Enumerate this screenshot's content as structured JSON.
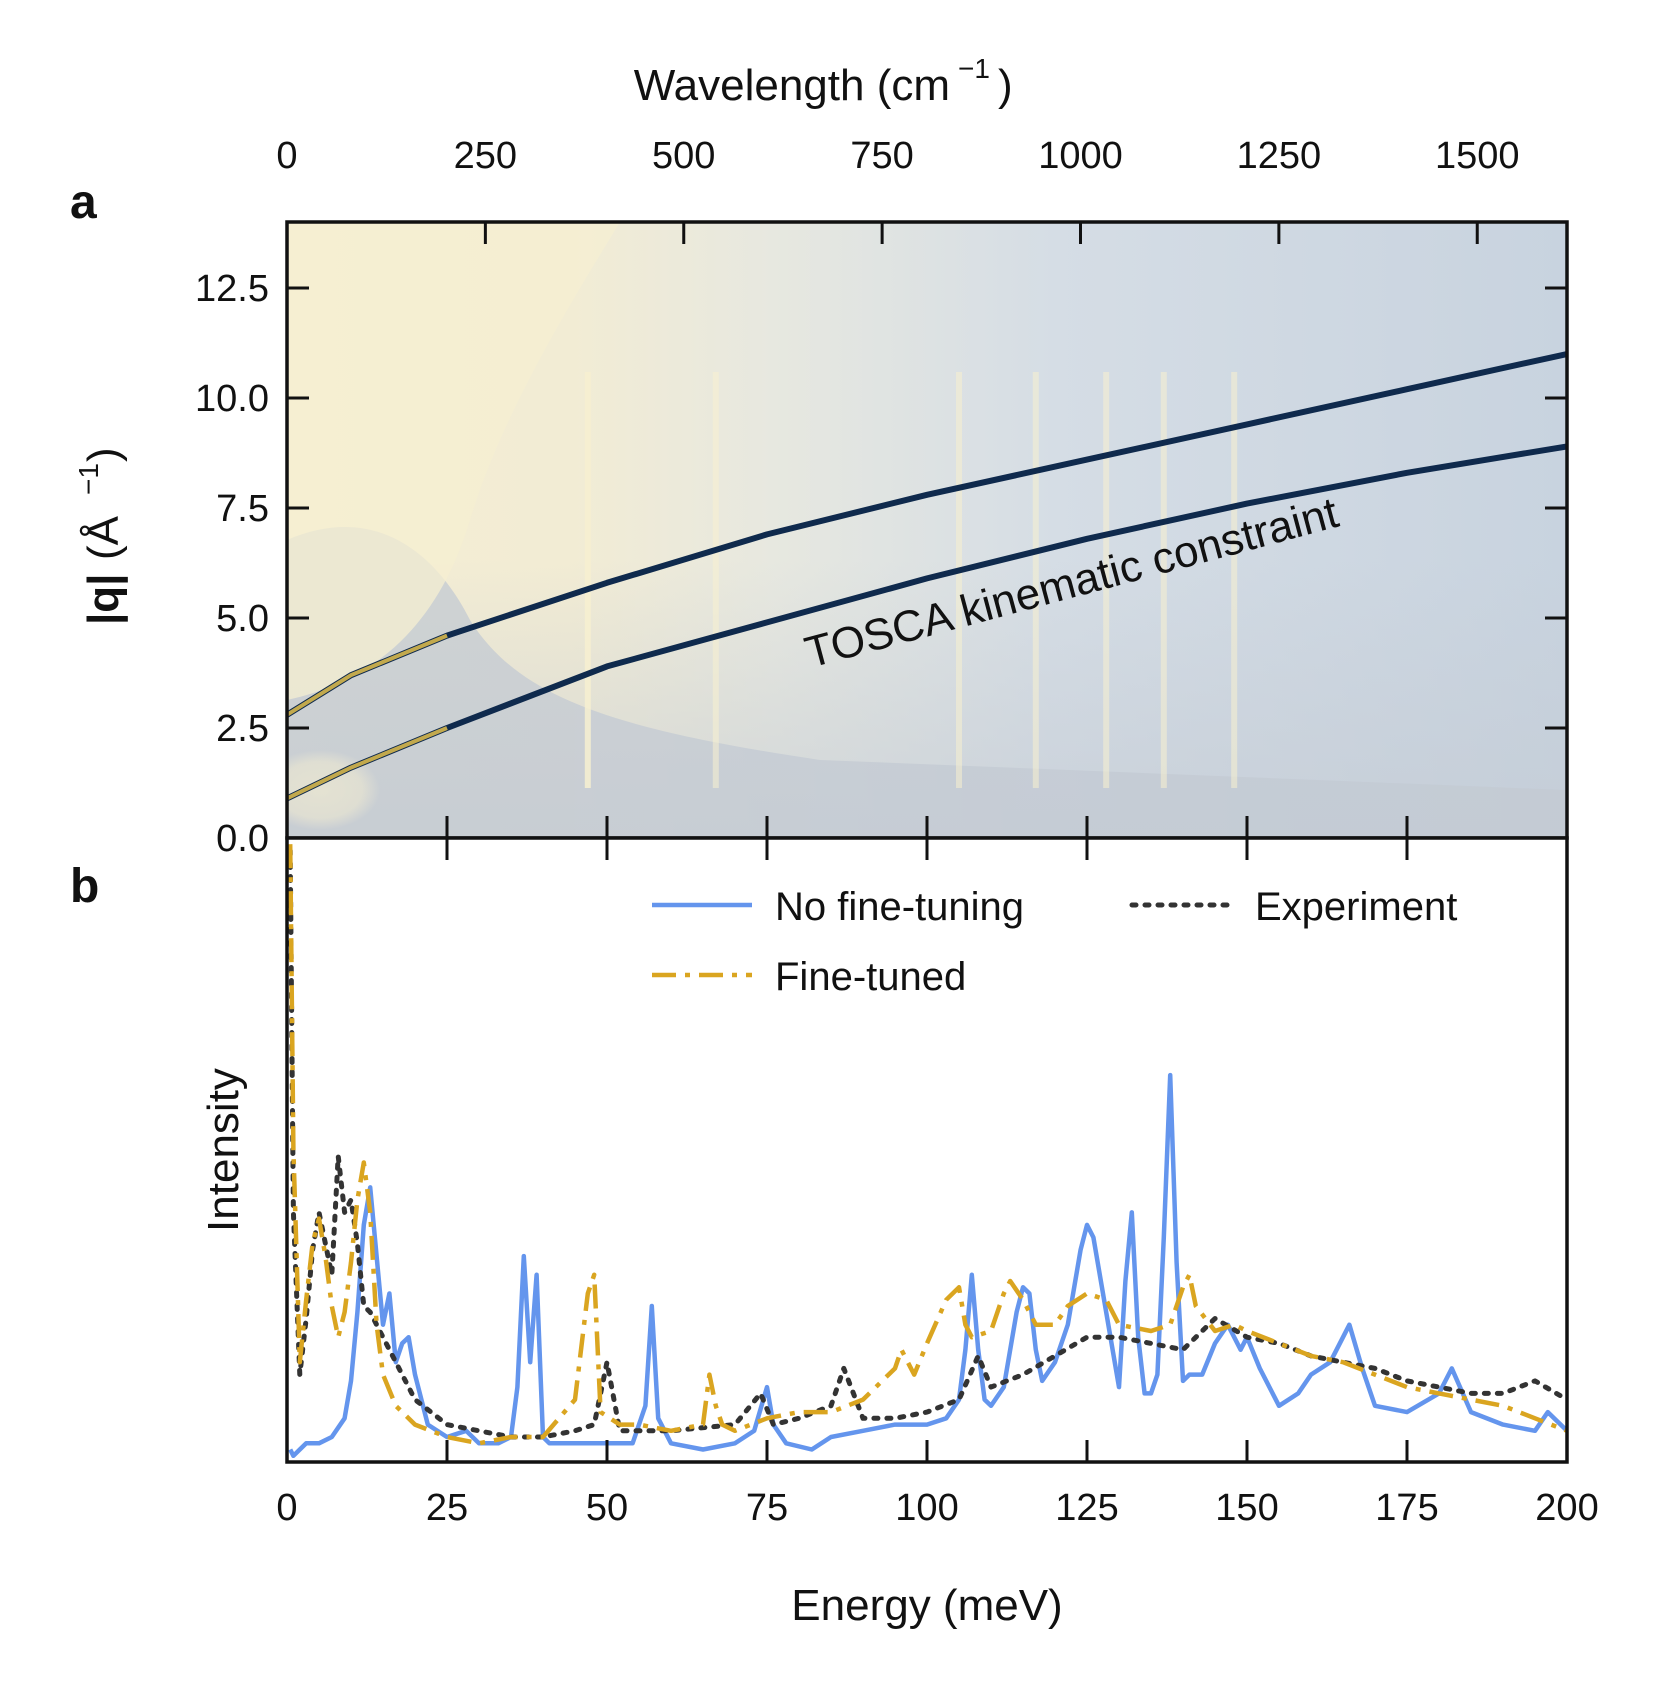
{
  "figure": {
    "panel_a_letter": "a",
    "panel_b_letter": "b"
  },
  "chart_data": [
    {
      "type": "heatmap",
      "panel": "a",
      "top_axis_label": "Wavelength (cm",
      "top_axis_label_exp": "−1",
      "top_axis_label_close": ")",
      "top_ticks": [
        "0",
        "250",
        "500",
        "750",
        "1000",
        "1250",
        "1500"
      ],
      "top_tick_values": [
        0,
        250,
        500,
        750,
        1000,
        1250,
        1500
      ],
      "ylabel_q": "|q|",
      "ylabel_unit": "(Å",
      "ylabel_exp": "−1",
      "ylabel_close": ")",
      "ylim": [
        0,
        14
      ],
      "xlim_meV": [
        0,
        200
      ],
      "y_ticks": [
        "0.0",
        "2.5",
        "5.0",
        "7.5",
        "10.0",
        "12.5"
      ],
      "y_tick_values": [
        0.0,
        2.5,
        5.0,
        7.5,
        10.0,
        12.5
      ],
      "annotation": "TOSCA kinematic constraint",
      "colors": {
        "low_q_high_intensity": "#f5eed3",
        "background": "#c3ccd7",
        "curve": "#0f2a4d",
        "curve_highlight": "#d6b74e"
      },
      "constraint_curves": [
        {
          "name": "upper",
          "energy_meV": [
            0,
            10,
            25,
            50,
            75,
            100,
            125,
            150,
            175,
            200
          ],
          "q": [
            2.8,
            3.7,
            4.6,
            5.8,
            6.9,
            7.8,
            8.6,
            9.4,
            10.2,
            11.0
          ]
        },
        {
          "name": "lower",
          "energy_meV": [
            0,
            10,
            25,
            50,
            75,
            100,
            125,
            150,
            175,
            200
          ],
          "q": [
            0.9,
            1.6,
            2.5,
            3.9,
            4.9,
            5.9,
            6.8,
            7.6,
            8.3,
            8.9
          ]
        }
      ],
      "bright_streaks_meV": [
        47,
        67,
        105,
        117,
        128,
        137,
        148
      ]
    },
    {
      "type": "line",
      "panel": "b",
      "xlabel": "Energy (meV)",
      "ylabel": "Intensity",
      "xlim": [
        0,
        200
      ],
      "ylim": [
        0,
        100
      ],
      "x_ticks": [
        "0",
        "25",
        "50",
        "75",
        "100",
        "125",
        "150",
        "175",
        "200"
      ],
      "x_tick_values": [
        0,
        25,
        50,
        75,
        100,
        125,
        150,
        175,
        200
      ],
      "legend": [
        "No fine-tuning",
        "Experiment",
        "Fine-tuned"
      ],
      "series": [
        {
          "name": "No fine-tuning",
          "color": "#6495ed",
          "style": "solid",
          "x": [
            0.5,
            1,
            2,
            3,
            5,
            7,
            9,
            10,
            11,
            12,
            13,
            14,
            15,
            16,
            17,
            18,
            19,
            20,
            22,
            25,
            28,
            30,
            33,
            35,
            36,
            37,
            38,
            39,
            40,
            41,
            42,
            45,
            50,
            54,
            56,
            57,
            58,
            60,
            65,
            70,
            73,
            75,
            76,
            78,
            82,
            85,
            90,
            95,
            100,
            103,
            105,
            106,
            107,
            108,
            109,
            110,
            112,
            114,
            115,
            116,
            117,
            118,
            120,
            122,
            124,
            125,
            126,
            128,
            130,
            131,
            132,
            133,
            134,
            135,
            136,
            137,
            138,
            139,
            140,
            141,
            143,
            145,
            147,
            149,
            150,
            152,
            155,
            158,
            160,
            163,
            165,
            166,
            168,
            170,
            175,
            180,
            182,
            185,
            190,
            195,
            197,
            200
          ],
          "y": [
            2,
            1,
            2,
            3,
            3,
            4,
            7,
            13,
            24,
            38,
            44,
            33,
            22,
            27,
            16,
            19,
            20,
            14,
            6,
            4,
            5,
            3,
            3,
            4,
            12,
            33,
            16,
            30,
            4,
            3,
            3,
            3,
            3,
            3,
            9,
            25,
            7,
            3,
            2,
            3,
            5,
            12,
            6,
            3,
            2,
            4,
            5,
            6,
            6,
            7,
            10,
            18,
            30,
            18,
            10,
            9,
            12,
            24,
            28,
            27,
            18,
            13,
            16,
            22,
            34,
            38,
            36,
            24,
            12,
            29,
            40,
            20,
            11,
            11,
            14,
            36,
            62,
            32,
            13,
            14,
            14,
            19,
            22,
            18,
            20,
            15,
            9,
            11,
            14,
            16,
            20,
            22,
            15,
            9,
            8,
            11,
            15,
            8,
            6,
            5,
            8,
            5
          ]
        },
        {
          "name": "Experiment",
          "color": "#333333",
          "style": "dotted",
          "x": [
            0.5,
            1,
            2,
            3,
            4,
            5,
            6,
            7,
            8,
            9,
            10,
            11,
            12,
            13,
            15,
            18,
            20,
            25,
            30,
            35,
            40,
            45,
            48,
            50,
            52,
            55,
            60,
            70,
            74,
            76,
            80,
            85,
            87,
            90,
            95,
            100,
            105,
            108,
            110,
            115,
            120,
            125,
            130,
            135,
            140,
            145,
            150,
            155,
            160,
            165,
            170,
            175,
            180,
            185,
            190,
            195,
            200
          ],
          "y": [
            98,
            40,
            14,
            23,
            34,
            40,
            35,
            30,
            49,
            40,
            42,
            35,
            25,
            24,
            20,
            14,
            10,
            6,
            5,
            4,
            4,
            5,
            6,
            16,
            5,
            5,
            5,
            6,
            11,
            6,
            7,
            9,
            15,
            7,
            7,
            8,
            10,
            17,
            12,
            14,
            17,
            20,
            20,
            19,
            18,
            23,
            20,
            19,
            17,
            16,
            15,
            13,
            12,
            11,
            11,
            13,
            10
          ]
        },
        {
          "name": "Fine-tuned",
          "color": "#daa520",
          "style": "dashdot",
          "x": [
            0.5,
            1,
            2,
            3,
            4,
            5,
            6,
            7,
            8,
            9,
            10,
            11,
            12,
            13,
            14,
            15,
            17,
            20,
            25,
            30,
            35,
            40,
            45,
            47,
            48,
            49,
            52,
            55,
            60,
            65,
            66,
            67,
            68,
            70,
            75,
            80,
            85,
            90,
            95,
            96,
            97,
            98,
            100,
            103,
            105,
            106,
            107,
            110,
            112,
            113,
            115,
            117,
            120,
            122,
            125,
            128,
            130,
            135,
            138,
            140,
            141,
            142,
            145,
            148,
            150,
            155,
            160,
            165,
            170,
            175,
            180,
            185,
            190,
            195,
            200
          ],
          "y": [
            99,
            50,
            16,
            26,
            35,
            39,
            33,
            25,
            20,
            24,
            32,
            42,
            48,
            40,
            22,
            14,
            9,
            6,
            4,
            3,
            4,
            4,
            10,
            27,
            30,
            8,
            6,
            6,
            5,
            6,
            14,
            9,
            6,
            5,
            7,
            8,
            8,
            10,
            15,
            18,
            16,
            14,
            19,
            26,
            28,
            22,
            20,
            21,
            27,
            29,
            26,
            22,
            22,
            25,
            27,
            26,
            22,
            21,
            22,
            28,
            30,
            25,
            21,
            22,
            21,
            19,
            17,
            16,
            14,
            12,
            11,
            10,
            9,
            7,
            5
          ]
        }
      ]
    }
  ]
}
